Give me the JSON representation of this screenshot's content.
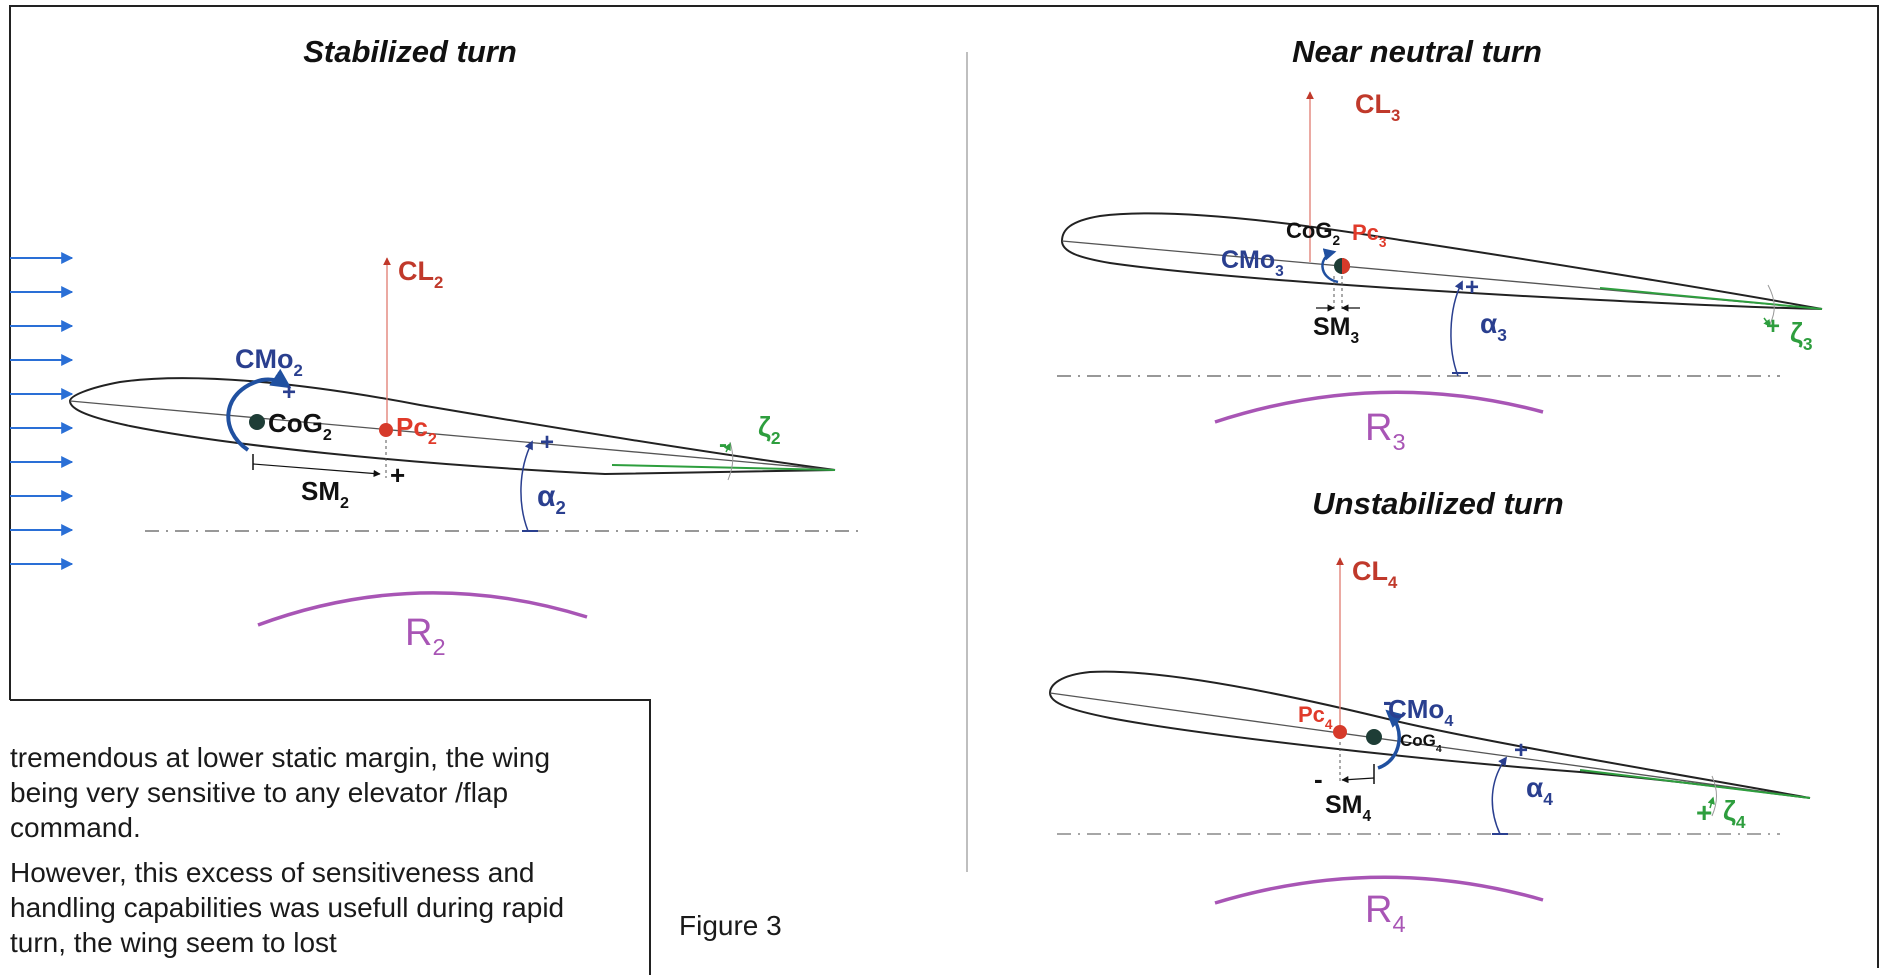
{
  "panels": {
    "stabilized": {
      "title": "Stabilized turn",
      "lift": {
        "base": "CL",
        "sub": "2"
      },
      "moment": {
        "base": "CMo",
        "sub": "2"
      },
      "cog": {
        "base": "CoG",
        "sub": "2"
      },
      "center_of_pressure": {
        "base": "Pc",
        "sub": "2"
      },
      "static_margin": {
        "base": "SM",
        "sub": "2"
      },
      "alpha": {
        "base": "α",
        "sub": "2"
      },
      "zeta": {
        "base": "ζ",
        "sub": "2"
      },
      "radius": {
        "base": "R",
        "sub": "2"
      },
      "sign_moment": "+",
      "sign_margin": "+",
      "sign_alpha": "+",
      "sign_zeta": "-"
    },
    "near_neutral": {
      "title": "Near neutral turn",
      "lift": {
        "base": "CL",
        "sub": "3"
      },
      "moment": {
        "base": "CMo",
        "sub": "3"
      },
      "cog": {
        "base": "CoG",
        "sub": "2"
      },
      "center_of_pressure": {
        "base": "Pc",
        "sub": "3"
      },
      "static_margin": {
        "base": "SM",
        "sub": "3"
      },
      "alpha": {
        "base": "α",
        "sub": "3"
      },
      "zeta": {
        "base": "ζ",
        "sub": "3"
      },
      "radius": {
        "base": "R",
        "sub": "3"
      },
      "sign_alpha": "+",
      "sign_zeta": "+"
    },
    "unstabilized": {
      "title": "Unstabilized turn",
      "lift": {
        "base": "CL",
        "sub": "4"
      },
      "moment": {
        "base": "CMo",
        "sub": "4"
      },
      "cog": {
        "base": "CoG",
        "sub": "4"
      },
      "center_of_pressure": {
        "base": "Pc",
        "sub": "4"
      },
      "static_margin": {
        "base": "SM",
        "sub": "4"
      },
      "alpha": {
        "base": "α",
        "sub": "4"
      },
      "zeta": {
        "base": "ζ",
        "sub": "4"
      },
      "radius": {
        "base": "R",
        "sub": "4"
      },
      "sign_moment": "-",
      "sign_margin": "-",
      "sign_alpha": "+",
      "sign_zeta": "+"
    }
  },
  "body_text": [
    "tremendous at lower static margin, the wing being very sensitive to any elevator /flap command.",
    "However, this excess of sensitiveness and handling capabilities was usefull during rapid turn, the wing seem to lost"
  ],
  "caption": "Figure 3",
  "colors": {
    "lift": "#c0392b",
    "moment": "#2a3f8f",
    "moment_arrow": "#2050a0",
    "wind": "#2a6fd6",
    "zeta": "#2e9e3e",
    "radius": "#a855b5",
    "pressure_point": "#d63a2a",
    "cog_point": "#1e3d36",
    "alpha": "#2a3f8f"
  }
}
